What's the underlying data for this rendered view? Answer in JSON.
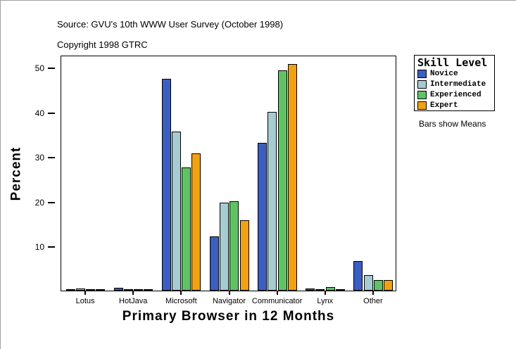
{
  "header": {
    "source_line": "Source: GVU's 10th WWW User Survey (October 1998)",
    "copyright_line": "Copyright 1998 GTRC"
  },
  "chart_data": {
    "type": "bar",
    "title": "",
    "xlabel": "Primary Browser in 12 Months",
    "ylabel": "Percent",
    "categories": [
      "Lotus",
      "HotJava",
      "Microsoft",
      "Navigator",
      "Communicator",
      "Lynx",
      "Other"
    ],
    "series": [
      {
        "name": "Novice",
        "color": "#3a5fc1",
        "values": [
          0.1,
          0.6,
          47.4,
          12.1,
          33.1,
          0.4,
          6.6
        ]
      },
      {
        "name": "Intermediate",
        "color": "#a6ccd2",
        "values": [
          0.5,
          0.2,
          35.6,
          19.7,
          40.0,
          0.3,
          3.5
        ]
      },
      {
        "name": "Experienced",
        "color": "#5ec463",
        "values": [
          0.1,
          0.1,
          27.5,
          20.0,
          49.3,
          0.8,
          2.3
        ]
      },
      {
        "name": "Expert",
        "color": "#f2a112",
        "values": [
          0.2,
          0.2,
          30.7,
          15.7,
          50.6,
          0.1,
          2.4
        ]
      }
    ],
    "ylim": [
      0,
      52.7
    ],
    "yticks": [
      10,
      20,
      30,
      40,
      50
    ],
    "grid": false,
    "legend_position": "right",
    "bar_outline_color": "#000000"
  },
  "legend": {
    "title": "Skill Level",
    "note": "Bars show Means"
  }
}
